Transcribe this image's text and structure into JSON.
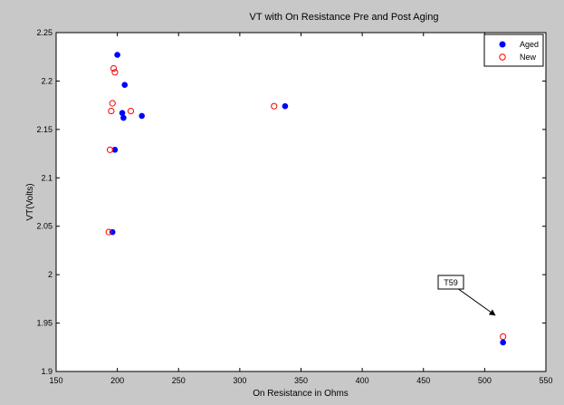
{
  "chart_data": {
    "type": "scatter",
    "title": "VT with On Resistance Pre and Post Aging",
    "xlabel": "On Resistance in Ohms",
    "ylabel": "VT(Volts)",
    "xlim": [
      150,
      550
    ],
    "ylim": [
      1.9,
      2.25
    ],
    "xticks": [
      150,
      200,
      250,
      300,
      350,
      400,
      450,
      500,
      550
    ],
    "xtick_labels": [
      "150",
      "200",
      "250",
      "300",
      "350",
      "400",
      "450",
      "500",
      "550"
    ],
    "yticks": [
      1.9,
      1.95,
      2.0,
      2.05,
      2.1,
      2.15,
      2.2,
      2.25
    ],
    "ytick_labels": [
      "1.9",
      "1.95",
      "2",
      "2.05",
      "2.1",
      "2.15",
      "2.2",
      "2.25"
    ],
    "grid": false,
    "legend_position": "top-right",
    "series": [
      {
        "name": "Aged",
        "marker": "filled-circle",
        "color": "#0000ff",
        "points": [
          [
            200,
            2.227
          ],
          [
            206,
            2.196
          ],
          [
            204,
            2.167
          ],
          [
            205,
            2.162
          ],
          [
            220,
            2.164
          ],
          [
            198,
            2.129
          ],
          [
            196,
            2.044
          ],
          [
            337,
            2.174
          ],
          [
            515,
            1.93
          ]
        ]
      },
      {
        "name": "New",
        "marker": "open-circle",
        "color": "#ff0000",
        "points": [
          [
            197,
            2.213
          ],
          [
            198,
            2.209
          ],
          [
            196,
            2.177
          ],
          [
            195,
            2.169
          ],
          [
            211,
            2.169
          ],
          [
            194,
            2.129
          ],
          [
            193,
            2.044
          ],
          [
            328,
            2.174
          ],
          [
            515,
            1.936
          ]
        ]
      }
    ],
    "annotations": [
      {
        "text": "T59",
        "target": [
          515,
          1.935
        ]
      }
    ]
  }
}
